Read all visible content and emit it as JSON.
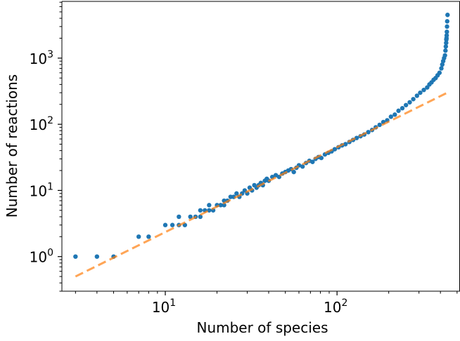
{
  "chart_data": {
    "type": "scatter",
    "title": "",
    "xlabel": "Number of species",
    "ylabel": "Number of reactions",
    "xscale": "log",
    "yscale": "log",
    "xlim": [
      2.5,
      520
    ],
    "ylim": [
      0.3,
      7200
    ],
    "grid": false,
    "legend": "none",
    "x_ticks": [
      {
        "value": 10,
        "base": "10",
        "exp": "1"
      },
      {
        "value": 100,
        "base": "10",
        "exp": "2"
      }
    ],
    "y_ticks": [
      {
        "value": 1,
        "base": "10",
        "exp": "0"
      },
      {
        "value": 10,
        "base": "10",
        "exp": "1"
      },
      {
        "value": 100,
        "base": "10",
        "exp": "2"
      },
      {
        "value": 1000,
        "base": "10",
        "exp": "3"
      }
    ],
    "colors": {
      "points": "#1f77b4",
      "fit_line": "#ff7f0e"
    },
    "fit_line": {
      "style": "dashed",
      "x": [
        3,
        450
      ],
      "y": [
        0.5,
        310
      ]
    },
    "series": [
      {
        "x": [
          3,
          4,
          5,
          7,
          8,
          10,
          11,
          12,
          12,
          13,
          14,
          15,
          16,
          16,
          17,
          18,
          18,
          19,
          20,
          21,
          22,
          22,
          23,
          24,
          25,
          26,
          27,
          28,
          29,
          30,
          31,
          32,
          33,
          34,
          35,
          36,
          37,
          38,
          39,
          40,
          42,
          44,
          46,
          48,
          50,
          52,
          54,
          56,
          58,
          60,
          63,
          66,
          69,
          72,
          75,
          78,
          81,
          85,
          89,
          93,
          97,
          102,
          107,
          112,
          118,
          124,
          130,
          137,
          144,
          152,
          160,
          168,
          177,
          186,
          196,
          206,
          217,
          228,
          240,
          252,
          265,
          278,
          292,
          305,
          320,
          335,
          345,
          355,
          365,
          375,
          385,
          395,
          405,
          410,
          415,
          420,
          425,
          428,
          430,
          432,
          433,
          434,
          435,
          436,
          437,
          438,
          440
        ],
        "y": [
          1,
          1,
          1,
          2,
          2,
          3,
          3,
          3,
          4,
          3,
          4,
          4,
          4,
          5,
          5,
          5,
          6,
          5,
          6,
          6,
          7,
          6,
          7,
          8,
          8,
          9,
          8,
          9,
          10,
          9,
          11,
          10,
          12,
          11,
          12,
          13,
          12,
          14,
          15,
          14,
          16,
          17,
          16,
          18,
          19,
          20,
          21,
          19,
          22,
          24,
          23,
          26,
          28,
          27,
          30,
          32,
          31,
          35,
          37,
          39,
          42,
          45,
          48,
          50,
          54,
          58,
          62,
          66,
          70,
          76,
          82,
          90,
          98,
          108,
          115,
          130,
          140,
          160,
          175,
          195,
          215,
          240,
          270,
          300,
          330,
          360,
          400,
          430,
          470,
          500,
          550,
          600,
          700,
          800,
          900,
          1000,
          1100,
          1300,
          1500,
          1700,
          1900,
          2000,
          2200,
          2500,
          3000,
          3600,
          4500
        ]
      }
    ]
  }
}
